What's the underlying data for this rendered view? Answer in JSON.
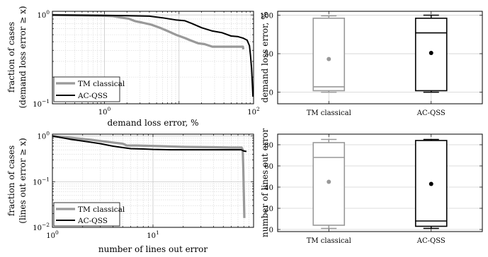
{
  "chart_data": [
    {
      "id": "tl",
      "type": "line",
      "xscale": "log",
      "yscale": "log",
      "xlim": [
        0.2,
        100
      ],
      "ylim": [
        0.1,
        1.1
      ],
      "xlabel": "demand loss error, %",
      "ylabel": [
        "fraction of cases",
        "(demand loss error ≥ x)"
      ],
      "xticks": [
        {
          "v": 1,
          "l": "10",
          "e": "0"
        },
        {
          "v": 10,
          "l": "",
          "e": ""
        },
        {
          "v": 100,
          "l": "10",
          "e": "2"
        }
      ],
      "yticks": [
        {
          "v": 0.1,
          "l": "10",
          "e": "−1"
        },
        {
          "v": 1,
          "l": "10",
          "e": "0"
        }
      ],
      "grid": true,
      "legend": "bottom-left",
      "series": [
        {
          "name": "TM classical",
          "color": "#999999",
          "width": 3.2,
          "points": [
            [
              0.2,
              1.0
            ],
            [
              0.5,
              0.99
            ],
            [
              0.9,
              0.98
            ],
            [
              1.3,
              0.97
            ],
            [
              1.6,
              0.94
            ],
            [
              2.1,
              0.91
            ],
            [
              2.6,
              0.85
            ],
            [
              3.2,
              0.82
            ],
            [
              4.2,
              0.78
            ],
            [
              5.5,
              0.72
            ],
            [
              7,
              0.66
            ],
            [
              9,
              0.6
            ],
            [
              12,
              0.55
            ],
            [
              14,
              0.52
            ],
            [
              18,
              0.48
            ],
            [
              22,
              0.47
            ],
            [
              28,
              0.44
            ],
            [
              45,
              0.44
            ],
            [
              72,
              0.44
            ],
            [
              73,
              0.41
            ]
          ]
        },
        {
          "name": "AC-QSS",
          "color": "#000000",
          "width": 2,
          "points": [
            [
              0.2,
              1.0
            ],
            [
              1,
              0.99
            ],
            [
              2,
              0.98
            ],
            [
              4,
              0.97
            ],
            [
              6,
              0.93
            ],
            [
              9,
              0.88
            ],
            [
              12,
              0.86
            ],
            [
              15,
              0.8
            ],
            [
              20,
              0.72
            ],
            [
              28,
              0.66
            ],
            [
              38,
              0.63
            ],
            [
              50,
              0.58
            ],
            [
              62,
              0.57
            ],
            [
              72,
              0.55
            ],
            [
              82,
              0.52
            ],
            [
              88,
              0.45
            ],
            [
              91,
              0.35
            ],
            [
              94,
              0.25
            ],
            [
              96,
              0.18
            ],
            [
              98,
              0.12
            ]
          ]
        }
      ]
    },
    {
      "id": "bl",
      "type": "line",
      "xscale": "log",
      "yscale": "log",
      "xlim": [
        1,
        100
      ],
      "ylim": [
        0.01,
        1.1
      ],
      "xlabel": "number of lines out error",
      "ylabel": [
        "fraction of cases",
        "(lines out error ≥ x)"
      ],
      "xticks": [
        {
          "v": 1,
          "l": "10",
          "e": "0"
        },
        {
          "v": 10,
          "l": "10",
          "e": "1"
        },
        {
          "v": 100,
          "l": "",
          "e": ""
        }
      ],
      "yticks": [
        {
          "v": 0.01,
          "l": "10",
          "e": "−2"
        },
        {
          "v": 0.1,
          "l": "10",
          "e": "−1"
        },
        {
          "v": 1,
          "l": "10",
          "e": "0"
        }
      ],
      "grid": true,
      "legend": "bottom-left",
      "series": [
        {
          "name": "TM classical",
          "color": "#999999",
          "width": 3.2,
          "points": [
            [
              1,
              1.0
            ],
            [
              1.5,
              0.92
            ],
            [
              2,
              0.86
            ],
            [
              2.5,
              0.82
            ],
            [
              3,
              0.78
            ],
            [
              3.5,
              0.75
            ],
            [
              4,
              0.72
            ],
            [
              5,
              0.68
            ],
            [
              5.5,
              0.62
            ],
            [
              7,
              0.62
            ],
            [
              12,
              0.6
            ],
            [
              20,
              0.58
            ],
            [
              40,
              0.57
            ],
            [
              60,
              0.56
            ],
            [
              76,
              0.56
            ],
            [
              78,
              0.5
            ],
            [
              79,
              0.2
            ],
            [
              80,
              0.06
            ],
            [
              81,
              0.016
            ]
          ]
        },
        {
          "name": "AC-QSS",
          "color": "#000000",
          "width": 2,
          "points": [
            [
              1,
              1.0
            ],
            [
              1.5,
              0.85
            ],
            [
              2,
              0.78
            ],
            [
              3,
              0.68
            ],
            [
              4,
              0.6
            ],
            [
              5,
              0.56
            ],
            [
              6,
              0.53
            ],
            [
              8,
              0.52
            ],
            [
              10,
              0.51
            ],
            [
              15,
              0.5
            ],
            [
              25,
              0.5
            ],
            [
              40,
              0.5
            ],
            [
              60,
              0.5
            ],
            [
              75,
              0.5
            ],
            [
              80,
              0.47
            ],
            [
              85,
              0.46
            ]
          ]
        }
      ]
    },
    {
      "id": "tr",
      "type": "box",
      "ylim": [
        -15,
        105
      ],
      "ylabel": "demand loss error, %",
      "yticks": [
        0,
        50,
        100
      ],
      "categories": [
        "TM classical",
        "AC-QSS"
      ],
      "grid": true,
      "boxes": [
        {
          "name": "TM classical",
          "color": "#999999",
          "min": 0,
          "q1": 2,
          "median": 7,
          "q3": 96,
          "max": 99,
          "mean": 43
        },
        {
          "name": "AC-QSS",
          "color": "#000000",
          "min": 0,
          "q1": 2,
          "median": 77,
          "q3": 96,
          "max": 100,
          "mean": 51
        }
      ]
    },
    {
      "id": "br",
      "type": "box",
      "ylim": [
        -2,
        90
      ],
      "ylabel": "number of lines out error",
      "yticks": [
        0,
        20,
        40,
        60,
        80
      ],
      "categories": [
        "TM classical",
        "AC-QSS"
      ],
      "grid": true,
      "boxes": [
        {
          "name": "TM classical",
          "color": "#999999",
          "min": 1,
          "q1": 4,
          "median": 68,
          "q3": 82,
          "max": 85,
          "mean": 45
        },
        {
          "name": "AC-QSS",
          "color": "#000000",
          "min": 1,
          "q1": 3,
          "median": 8,
          "q3": 84,
          "max": 85,
          "mean": 43
        }
      ]
    }
  ]
}
